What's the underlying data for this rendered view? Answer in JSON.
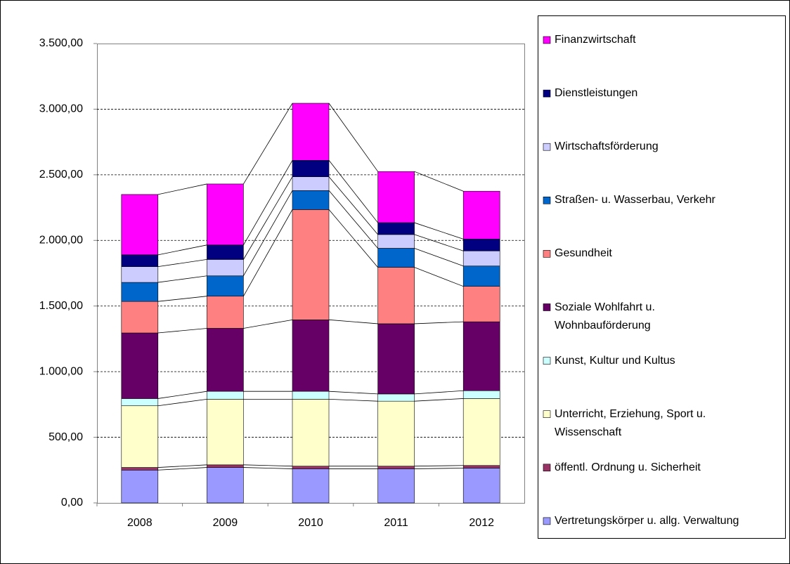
{
  "chart_data": {
    "type": "stacked_bar",
    "categories": [
      "2008",
      "2009",
      "2010",
      "2011",
      "2012"
    ],
    "series": [
      {
        "name": "Vertretungskörper u. allg. Verwaltung",
        "color": "#9999ff",
        "values": [
          250,
          270,
          260,
          260,
          265
        ]
      },
      {
        "name": "öffentl. Ordnung u. Sicherheit",
        "color": "#993366",
        "values": [
          20,
          20,
          20,
          20,
          20
        ]
      },
      {
        "name": "Unterricht, Erziehung, Sport u. Wissenschaft",
        "color": "#ffffcc",
        "values": [
          470,
          500,
          510,
          495,
          510
        ]
      },
      {
        "name": "Kunst, Kultur und Kultus",
        "color": "#ccffff",
        "values": [
          55,
          60,
          60,
          55,
          60
        ]
      },
      {
        "name": "Soziale Wohlfahrt u. Wohnbauförderung",
        "color": "#660066",
        "values": [
          500,
          480,
          545,
          535,
          525
        ]
      },
      {
        "name": "Gesundheit",
        "color": "#ff8080",
        "values": [
          240,
          245,
          840,
          430,
          270
        ]
      },
      {
        "name": "Straßen- u. Wasserbau, Verkehr",
        "color": "#0066cc",
        "values": [
          145,
          155,
          145,
          145,
          155
        ]
      },
      {
        "name": "Wirtschaftsförderung",
        "color": "#ccccff",
        "values": [
          120,
          125,
          105,
          105,
          115
        ]
      },
      {
        "name": "Dienstleistungen",
        "color": "#000080",
        "values": [
          90,
          110,
          125,
          90,
          90
        ]
      },
      {
        "name": "Finanzwirtschaft",
        "color": "#ff00ff",
        "values": [
          460,
          465,
          435,
          390,
          365
        ]
      }
    ],
    "ylim": [
      0,
      3500
    ],
    "yticks": [
      {
        "value": 0,
        "label": "0,00"
      },
      {
        "value": 500,
        "label": "500,00"
      },
      {
        "value": 1000,
        "label": "1.000,00"
      },
      {
        "value": 1500,
        "label": "1.500,00"
      },
      {
        "value": 2000,
        "label": "2.000,00"
      },
      {
        "value": 2500,
        "label": "2.500,00"
      },
      {
        "value": 3000,
        "label": "3.000,00"
      },
      {
        "value": 3500,
        "label": "3.500,00"
      }
    ],
    "grid": true,
    "legend": "right"
  }
}
